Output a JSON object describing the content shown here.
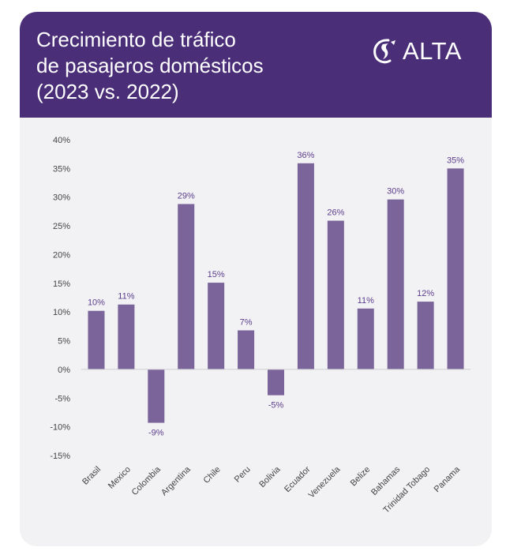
{
  "header": {
    "title_lines": [
      "Crecimiento de tráfico",
      "de pasajeros domésticos",
      "(2023 vs. 2022)"
    ],
    "logo_text": "ALTA",
    "logo_icon": "americas-swoosh-icon"
  },
  "colors": {
    "header_bg": "#4a2e78",
    "card_bg": "#f2f2f4",
    "bar": "#7a6499",
    "label": "#5b3d8c",
    "axis_text": "#444444"
  },
  "chart_data": {
    "type": "bar",
    "title": "Crecimiento de tráfico de pasajeros domésticos (2023 vs. 2022)",
    "categories": [
      "Brasil",
      "Mexico",
      "Colombia",
      "Argentina",
      "Chile",
      "Peru",
      "Bolivia",
      "Ecuador",
      "Venezuela",
      "Belize",
      "Bahamas",
      "Trinidad Tobago",
      "Panama"
    ],
    "values": [
      10.2,
      11.3,
      -9.3,
      28.8,
      15.1,
      6.8,
      -4.5,
      35.9,
      25.9,
      10.6,
      29.6,
      11.8,
      35.0
    ],
    "data_labels": [
      "10%",
      "11%",
      "-9%",
      "29%",
      "15%",
      "7%",
      "-5%",
      "36%",
      "26%",
      "11%",
      "30%",
      "12%",
      "35%"
    ],
    "ylim": [
      -15,
      40
    ],
    "yticks": [
      40,
      35,
      30,
      25,
      20,
      15,
      10,
      5,
      0,
      -5,
      -10,
      -15
    ],
    "ytick_labels": [
      "40%",
      "35%",
      "30%",
      "25%",
      "20%",
      "15%",
      "10%",
      "5%",
      "0%",
      "-5%",
      "-10%",
      "-15%"
    ],
    "grid": false,
    "legend": "none"
  }
}
